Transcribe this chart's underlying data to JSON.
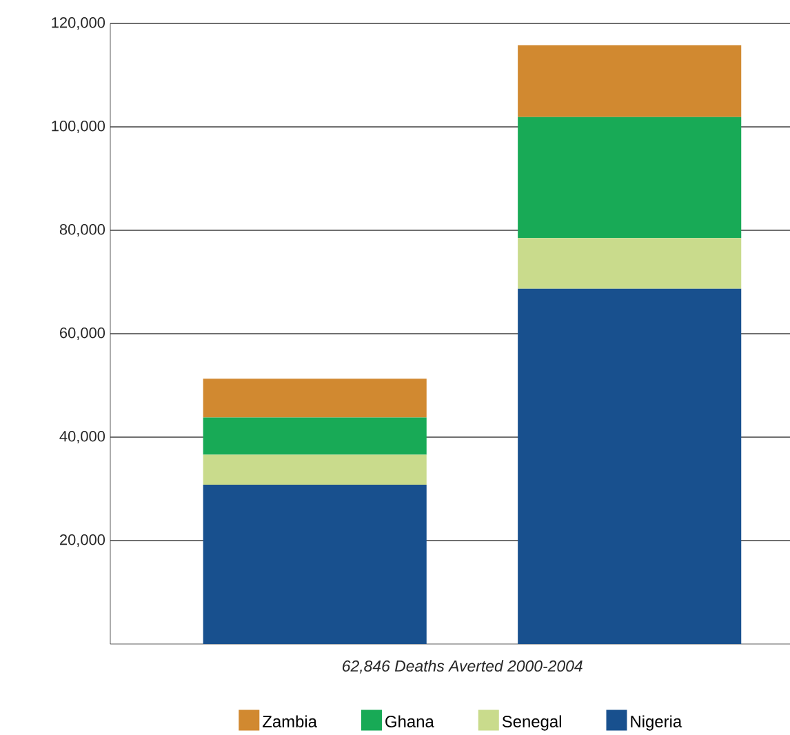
{
  "chart_data": {
    "type": "bar",
    "stacked": true,
    "xlabel": "62,846 Deaths Averted 2000-2004",
    "categories": [
      null,
      null
    ],
    "series": [
      {
        "name": "Nigeria",
        "color": "#18508e",
        "values": [
          30800,
          68700
        ]
      },
      {
        "name": "Senegal",
        "color": "#c9db8c",
        "values": [
          5800,
          9800
        ]
      },
      {
        "name": "Ghana",
        "color": "#18aa56",
        "values": [
          7200,
          23400
        ]
      },
      {
        "name": "Zambia",
        "color": "#d18930",
        "values": [
          7500,
          13900
        ]
      }
    ],
    "ylim": [
      0,
      120000
    ],
    "yticks": [
      {
        "value": 20000,
        "label": "20,000"
      },
      {
        "value": 40000,
        "label": "40,000"
      },
      {
        "value": 60000,
        "label": "60,000"
      },
      {
        "value": 80000,
        "label": "80,000"
      },
      {
        "value": 100000,
        "label": "100,000"
      },
      {
        "value": 120000,
        "label": "120,000"
      }
    ],
    "grid": "y",
    "legend": "bottom"
  }
}
